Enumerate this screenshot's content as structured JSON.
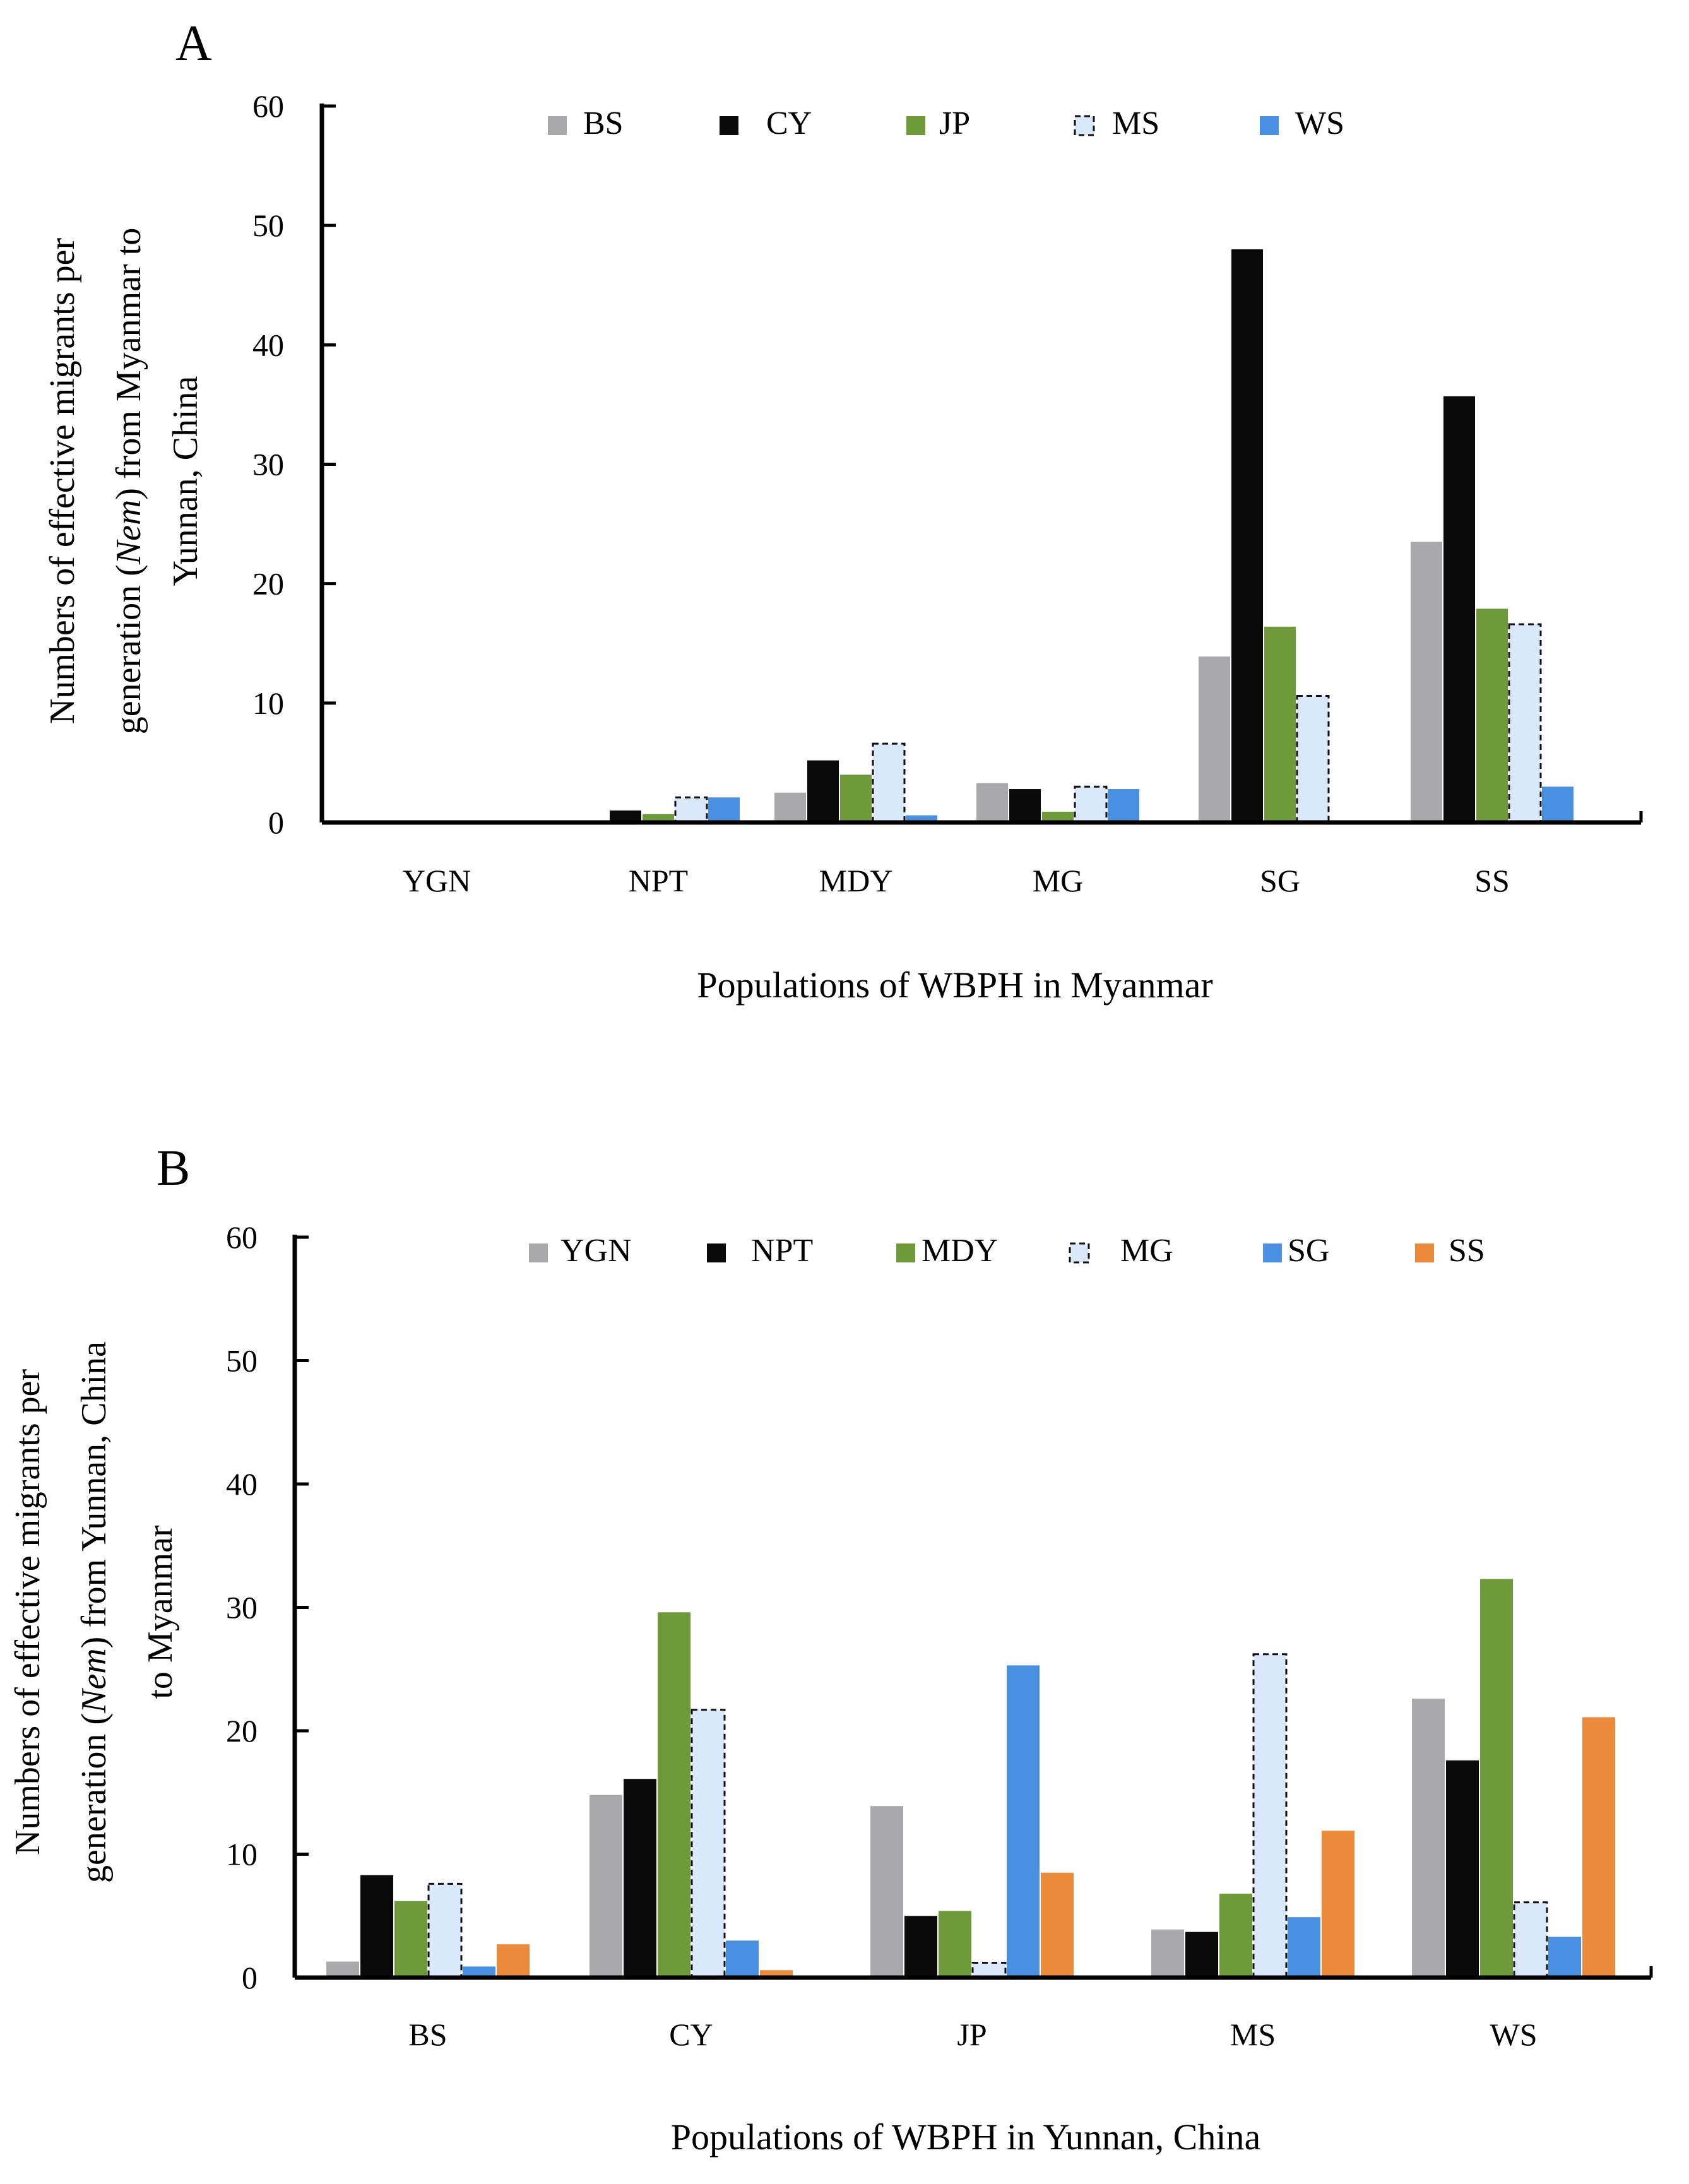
{
  "chart_data": [
    {
      "type": "bar",
      "panel": "A",
      "title": "",
      "xlabel": "Populations of WBPH in Myanmar",
      "ylabel_lines": [
        [
          "Numbers of effective migrants per"
        ],
        [
          "generation (",
          "Nem",
          ") from Myanmar to"
        ],
        [
          "Yunnan, China"
        ]
      ],
      "ylim": [
        0,
        60
      ],
      "yticks": [
        0,
        10,
        20,
        30,
        40,
        50,
        60
      ],
      "categories": [
        "YGN",
        "NPT",
        "MDY",
        "MG",
        "SG",
        "SS"
      ],
      "series": [
        {
          "name": "BS",
          "style": "gray",
          "values": [
            0,
            0,
            2.5,
            3.3,
            13.9,
            23.5
          ]
        },
        {
          "name": "CY",
          "style": "black",
          "values": [
            0,
            1.0,
            5.2,
            2.8,
            48.0,
            35.7
          ]
        },
        {
          "name": "JP",
          "style": "green",
          "values": [
            0,
            0.7,
            4.0,
            0.9,
            16.4,
            17.9
          ]
        },
        {
          "name": "MS",
          "style": "lightblue",
          "values": [
            0,
            2.1,
            6.6,
            3.0,
            10.6,
            16.6
          ]
        },
        {
          "name": "WS",
          "style": "blue",
          "values": [
            0,
            2.1,
            0.6,
            2.8,
            0,
            3.0
          ]
        }
      ]
    },
    {
      "type": "bar",
      "panel": "B",
      "title": "",
      "xlabel": "Populations of WBPH in Yunnan, China",
      "ylabel_lines": [
        [
          "Numbers of effective migrants per"
        ],
        [
          "generation (",
          "Nem",
          ") from Yunnan, China"
        ],
        [
          "to Myanmar"
        ]
      ],
      "ylim": [
        0,
        60
      ],
      "yticks": [
        0,
        10,
        20,
        30,
        40,
        50,
        60
      ],
      "categories": [
        "BS",
        "CY",
        "JP",
        "MS",
        "WS"
      ],
      "series": [
        {
          "name": "YGN",
          "style": "gray",
          "values": [
            1.3,
            14.8,
            13.9,
            3.9,
            22.6
          ]
        },
        {
          "name": "NPT",
          "style": "black",
          "values": [
            8.3,
            16.1,
            5.0,
            3.7,
            17.6
          ]
        },
        {
          "name": "MDY",
          "style": "green",
          "values": [
            6.2,
            29.6,
            5.4,
            6.8,
            32.3
          ]
        },
        {
          "name": "MG",
          "style": "lightblue",
          "values": [
            7.6,
            21.7,
            1.2,
            26.2,
            6.1
          ]
        },
        {
          "name": "SG",
          "style": "blue",
          "values": [
            0.9,
            3.0,
            25.3,
            4.9,
            3.3
          ]
        },
        {
          "name": "SS",
          "style": "orange",
          "values": [
            2.7,
            0.6,
            8.5,
            11.9,
            21.1
          ]
        }
      ]
    }
  ],
  "colors": {
    "gray": "#a9a9ab",
    "black": "#0a0a0a",
    "green": "#6f9a3a",
    "lightblue": "#d9e8fb",
    "blue": "#4a90e2",
    "orange": "#ec8a3c",
    "axis": "#000000"
  }
}
